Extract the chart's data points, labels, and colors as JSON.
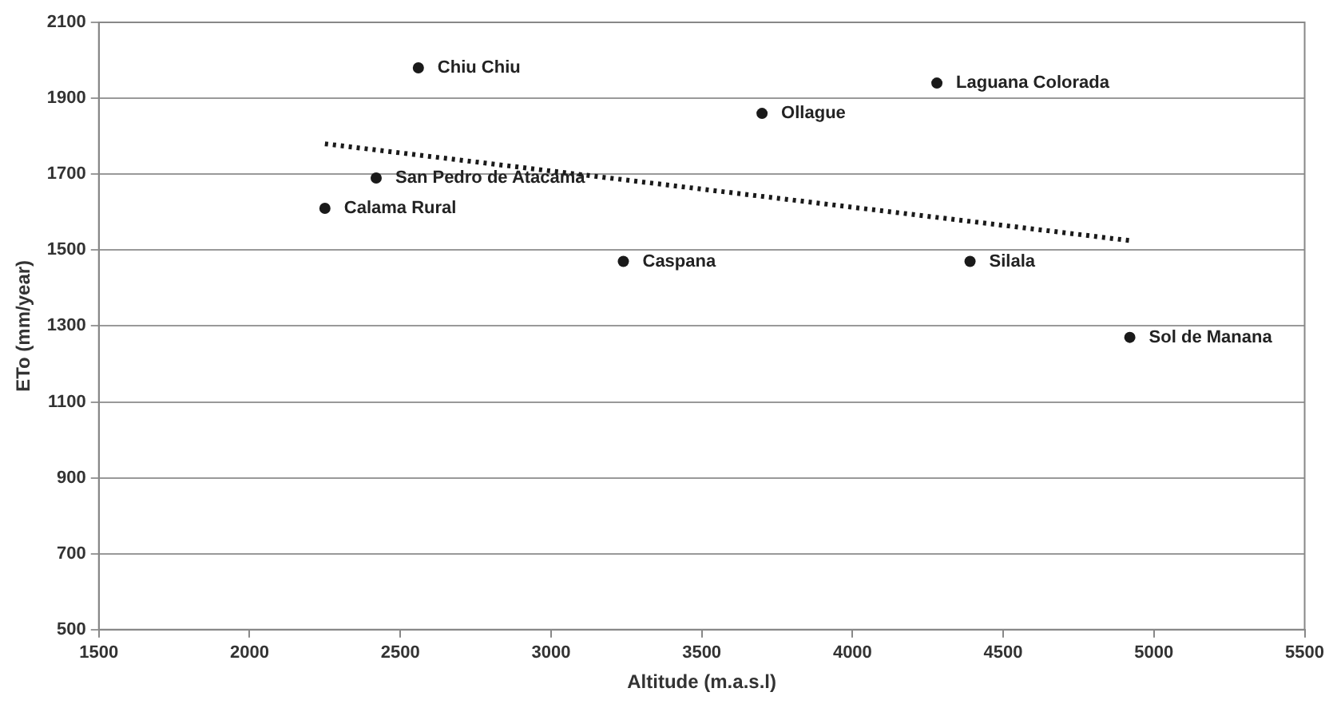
{
  "chart_data": {
    "type": "scatter",
    "xlabel": "Altitude (m.a.s.l)",
    "ylabel": "ETo (mm/year)",
    "xlim": [
      1500,
      5500
    ],
    "xticks": [
      1500,
      2000,
      2500,
      3000,
      3500,
      4000,
      4500,
      5000,
      5500
    ],
    "ylim": [
      500,
      2100
    ],
    "yticks": [
      500,
      700,
      900,
      1100,
      1300,
      1500,
      1700,
      1900,
      2100
    ],
    "grid": "y",
    "marker": "circle",
    "series": [
      {
        "type": "scatter",
        "color": "#1a1a1a",
        "x": [
          2560,
          4280,
          3700,
          2420,
          2250,
          3240,
          4390,
          4920
        ],
        "values": [
          1980,
          1940,
          1860,
          1690,
          1610,
          1470,
          1470,
          1270
        ]
      },
      {
        "type": "line",
        "color": "#1a1a1a",
        "line_style": "dotted",
        "marker": "none",
        "x": [
          2250,
          4920
        ],
        "values": [
          1780,
          1525
        ]
      }
    ],
    "annotations": [
      {
        "text": "Chiu Chiu",
        "x": 2560,
        "y": 1980
      },
      {
        "text": "Laguana Colorada",
        "x": 4280,
        "y": 1940
      },
      {
        "text": "Ollague",
        "x": 3700,
        "y": 1860
      },
      {
        "text": "San Pedro de Atacama",
        "x": 2420,
        "y": 1690
      },
      {
        "text": "Calama Rural",
        "x": 2250,
        "y": 1610
      },
      {
        "text": "Caspana",
        "x": 3240,
        "y": 1470
      },
      {
        "text": "Silala",
        "x": 4390,
        "y": 1470
      },
      {
        "text": "Sol de Manana",
        "x": 4920,
        "y": 1270
      }
    ]
  }
}
